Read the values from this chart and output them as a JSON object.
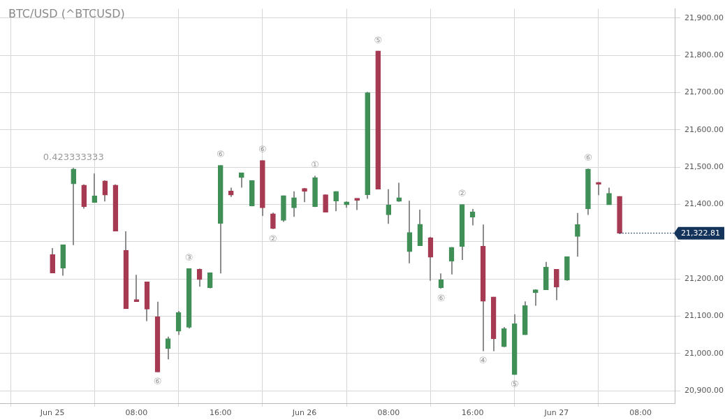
{
  "chart_data": {
    "type": "candlestick",
    "title": "BTC/USD (^BTCUSD)",
    "x": [
      "--06-25T00:00",
      "--06-25T01:00",
      "--06-25T02:00",
      "--06-25T03:00",
      "--06-25T04:00",
      "--06-25T05:00",
      "--06-25T06:00",
      "--06-25T07:00",
      "--06-25T08:00",
      "--06-25T09:00",
      "--06-25T10:00",
      "--06-25T11:00",
      "--06-25T12:00",
      "--06-25T13:00",
      "--06-25T14:00",
      "--06-25T15:00",
      "--06-25T16:00",
      "--06-25T17:00",
      "--06-25T18:00",
      "--06-25T19:00",
      "--06-25T20:00",
      "--06-25T21:00",
      "--06-25T22:00",
      "--06-25T23:00",
      "--06-26T00:00",
      "--06-26T01:00",
      "--06-26T02:00",
      "--06-26T03:00",
      "--06-26T04:00",
      "--06-26T05:00",
      "--06-26T06:00",
      "--06-26T07:00",
      "--06-26T08:00",
      "--06-26T09:00",
      "--06-26T10:00",
      "--06-26T11:00",
      "--06-26T12:00",
      "--06-26T13:00",
      "--06-26T14:00",
      "--06-26T15:00",
      "--06-26T16:00",
      "--06-26T17:00",
      "--06-26T18:00",
      "--06-26T19:00",
      "--06-26T20:00",
      "--06-26T21:00",
      "--06-26T22:00",
      "--06-26T23:00",
      "--06-27T00:00",
      "--06-27T01:00",
      "--06-27T02:00",
      "--06-27T03:00",
      "--06-27T04:00",
      "--06-27T05:00",
      "--06-27T06:00"
    ],
    "ohlc": [
      [
        21266,
        21283,
        21216,
        21216
      ],
      [
        21229,
        21292,
        21209,
        21292
      ],
      [
        21455,
        21498,
        21291,
        21495
      ],
      [
        21452,
        21454,
        21389,
        21394
      ],
      [
        21405,
        21483,
        21405,
        21423
      ],
      [
        21463,
        21465,
        21408,
        21425
      ],
      [
        21452,
        21454,
        21328,
        21328
      ],
      [
        21277,
        21328,
        21120,
        21120
      ],
      [
        21145,
        21211,
        21139,
        21139
      ],
      [
        21192,
        21192,
        21087,
        21119
      ],
      [
        21099,
        21139,
        20950,
        20950
      ],
      [
        21013,
        21045,
        20984,
        21040
      ],
      [
        21060,
        21114,
        21050,
        21110
      ],
      [
        21070,
        21228,
        21067,
        21228
      ],
      [
        21226,
        21228,
        21179,
        21198
      ],
      [
        21176,
        21217,
        21175,
        21217
      ],
      [
        21349,
        21505,
        21215,
        21505
      ],
      [
        21436,
        21445,
        21420,
        21425
      ],
      [
        21472,
        21485,
        21445,
        21485
      ],
      [
        21396,
        21464,
        21395,
        21464
      ],
      [
        21518,
        21518,
        21369,
        21391
      ],
      [
        21375,
        21378,
        21334,
        21335
      ],
      [
        21357,
        21424,
        21353,
        21424
      ],
      [
        21391,
        21435,
        21367,
        21418
      ],
      [
        21443,
        21444,
        21406,
        21435
      ],
      [
        21394,
        21477,
        21393,
        21472
      ],
      [
        21426,
        21427,
        21379,
        21379
      ],
      [
        21409,
        21435,
        21382,
        21435
      ],
      [
        21399,
        21408,
        21391,
        21407
      ],
      [
        21415,
        21415,
        21385,
        21411
      ],
      [
        21426,
        21702,
        21415,
        21700
      ],
      [
        21812,
        21812,
        21441,
        21441
      ],
      [
        21372,
        21441,
        21348,
        21399
      ],
      [
        21408,
        21458,
        21407,
        21418
      ],
      [
        21273,
        21410,
        21242,
        21325
      ],
      [
        21289,
        21386,
        21289,
        21347
      ],
      [
        21311,
        21313,
        21195,
        21258
      ],
      [
        21176,
        21215,
        21174,
        21198
      ],
      [
        21248,
        21285,
        21212,
        21285
      ],
      [
        21287,
        21400,
        21251,
        21400
      ],
      [
        21366,
        21388,
        21344,
        21380
      ],
      [
        21288,
        21346,
        21006,
        21140
      ],
      [
        21152,
        21152,
        21006,
        21039
      ],
      [
        21018,
        21071,
        21017,
        21067
      ],
      [
        20943,
        21105,
        20943,
        21080
      ],
      [
        21050,
        21140,
        21050,
        21129
      ],
      [
        21163,
        21172,
        21128,
        21171
      ],
      [
        21171,
        21246,
        21171,
        21232
      ],
      [
        21226,
        21226,
        21143,
        21178
      ],
      [
        21197,
        21260,
        21195,
        21260
      ],
      [
        21314,
        21377,
        21260,
        21346
      ],
      [
        21388,
        21496,
        21372,
        21495
      ],
      [
        21459,
        21460,
        21425,
        21454
      ],
      [
        21399,
        21445,
        21399,
        21430
      ],
      [
        21422,
        21422,
        21321,
        21322.81
      ]
    ],
    "colors": [
      "#a63a52",
      "#3f8f57",
      "#3f8f57",
      "#a63a52",
      "#3f8f57",
      "#a63a52",
      "#a63a52",
      "#a63a52",
      "#a63a52",
      "#a63a52",
      "#a63a52",
      "#3f8f57",
      "#3f8f57",
      "#3f8f57",
      "#a63a52",
      "#3f8f57",
      "#3f8f57",
      "#a63a52",
      "#3f8f57",
      "#3f8f57",
      "#a63a52",
      "#a63a52",
      "#3f8f57",
      "#3f8f57",
      "#a63a52",
      "#3f8f57",
      "#a63a52",
      "#3f8f57",
      "#3f8f57",
      "#a63a52",
      "#3f8f57",
      "#a63a52",
      "#3f8f57",
      "#3f8f57",
      "#3f8f57",
      "#3f8f57",
      "#a63a52",
      "#3f8f57",
      "#3f8f57",
      "#3f8f57",
      "#3f8f57",
      "#a63a52",
      "#a63a52",
      "#3f8f57",
      "#3f8f57",
      "#3f8f57",
      "#3f8f57",
      "#3f8f57",
      "#a63a52",
      "#3f8f57",
      "#3f8f57",
      "#3f8f57",
      "#a63a52",
      "#3f8f57",
      "#a63a52"
    ],
    "xlim": [
      "--06-24T19:00",
      "--06-27T11:15"
    ],
    "xticks": [
      {
        "value": "--06-25T00:00",
        "label": "Jun 25"
      },
      {
        "value": "--06-25T08:00",
        "label": "08:00"
      },
      {
        "value": "--06-25T16:00",
        "label": "16:00"
      },
      {
        "value": "--06-26T00:00",
        "label": "Jun 26"
      },
      {
        "value": "--06-26T08:00",
        "label": "08:00"
      },
      {
        "value": "--06-26T16:00",
        "label": "16:00"
      },
      {
        "value": "--06-27T00:00",
        "label": "Jun 27"
      },
      {
        "value": "--06-27T08:00",
        "label": "08:00"
      }
    ],
    "ylim": [
      20865,
      21925
    ],
    "yticks": [
      {
        "value": 20900,
        "label": "20,900.00"
      },
      {
        "value": 21000,
        "label": "21,000.00"
      },
      {
        "value": 21100,
        "label": "21,100.00"
      },
      {
        "value": 21200,
        "label": "21,200.00"
      },
      {
        "value": 21300,
        "label": null
      },
      {
        "value": 21400,
        "label": "21,400.00"
      },
      {
        "value": 21500,
        "label": "21,500.00"
      },
      {
        "value": 21600,
        "label": "21,600.00"
      },
      {
        "value": 21700,
        "label": "21,700.00"
      },
      {
        "value": 21800,
        "label": "21,800.00"
      },
      {
        "value": 21900,
        "label": "21,900.00"
      }
    ],
    "grid": true,
    "legend": false,
    "annotations": [
      {
        "text": "0.423333333",
        "x": "--06-25T02:00",
        "y": 21498
      },
      {
        "text": "⑥",
        "x": "--06-25T10:00",
        "y": 20950
      },
      {
        "text": "③",
        "x": "--06-25T13:00",
        "y": 21228
      },
      {
        "text": "⑥",
        "x": "--06-25T16:00",
        "y": 21505
      },
      {
        "text": "⑥",
        "x": "--06-25T20:00",
        "y": 21518
      },
      {
        "text": "②",
        "x": "--06-25T21:00",
        "y": 21334
      },
      {
        "text": "①",
        "x": "--06-26T01:00",
        "y": 21477
      },
      {
        "text": "⑤",
        "x": "--06-26T07:00",
        "y": 21812
      },
      {
        "text": "⑥",
        "x": "--06-26T13:00",
        "y": 21174
      },
      {
        "text": "②",
        "x": "--06-26T15:00",
        "y": 21400
      },
      {
        "text": "④",
        "x": "--06-26T17:00",
        "y": 21006
      },
      {
        "text": "⑤",
        "x": "--06-26T20:00",
        "y": 20943
      },
      {
        "text": "⑥",
        "x": "--06-27T03:00",
        "y": 21496
      },
      {
        "text": "21,322.81",
        "x": "--06-27T06:00",
        "y": 21322.81
      }
    ]
  }
}
